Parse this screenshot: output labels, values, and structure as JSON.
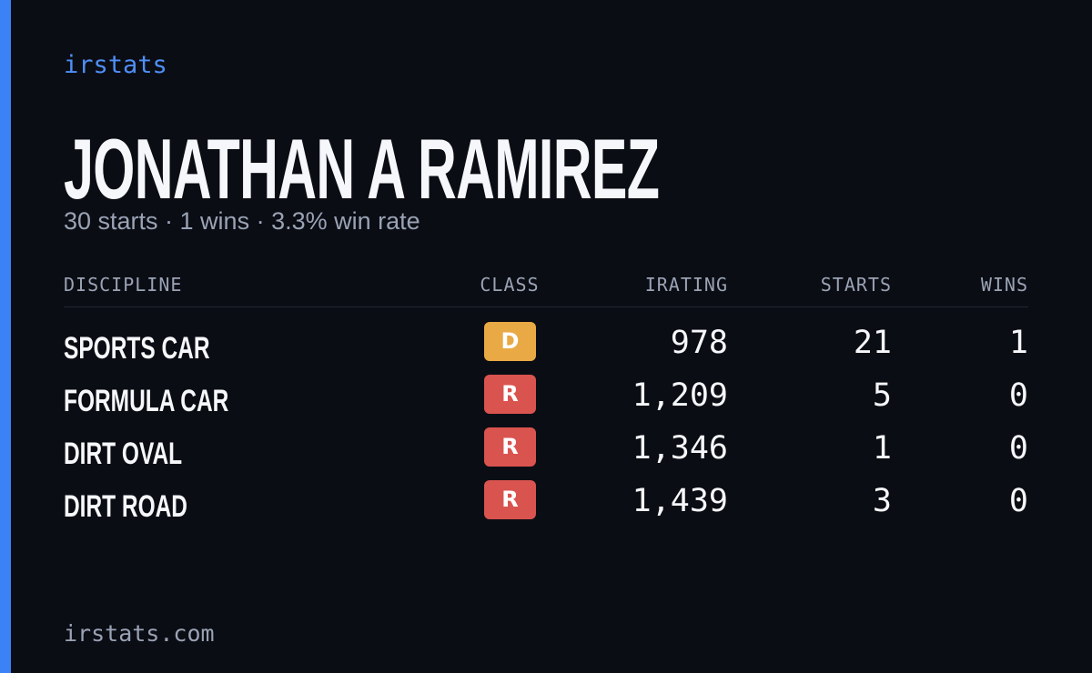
{
  "header": {
    "brand": "irstats",
    "name": "JONATHAN A RAMIREZ",
    "summary": "30 starts · 1 wins · 3.3% win rate"
  },
  "table": {
    "columns": [
      "DISCIPLINE",
      "CLASS",
      "IRATING",
      "STARTS",
      "WINS"
    ],
    "rows": [
      [
        "SPORTS CAR",
        "D",
        "978",
        "21",
        "1"
      ],
      [
        "FORMULA CAR",
        "R",
        "1,209",
        "5",
        "0"
      ],
      [
        "DIRT OVAL",
        "R",
        "1,346",
        "1",
        "0"
      ],
      [
        "DIRT ROAD",
        "R",
        "1,439",
        "3",
        "0"
      ]
    ]
  },
  "footer": {
    "site": "irstats.com"
  }
}
